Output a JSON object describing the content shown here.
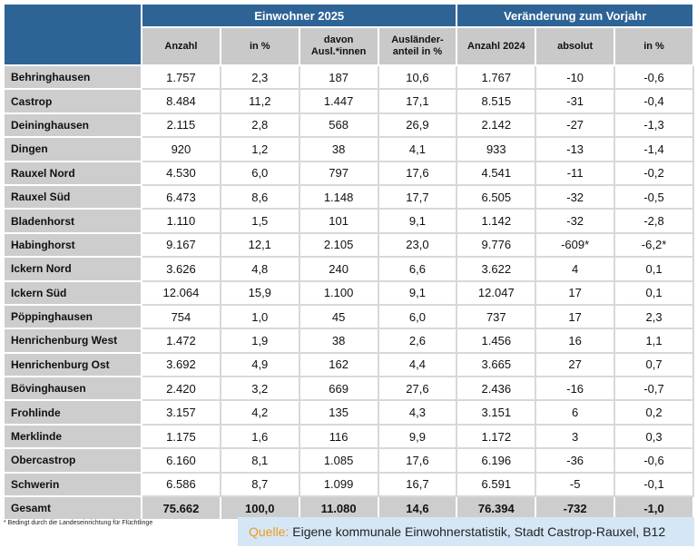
{
  "header": {
    "group1": "Einwohner 2025",
    "group2": "Veränderung zum Vorjahr",
    "columns": [
      "Anzahl",
      "in %",
      "davon Ausl.*innen",
      "Ausländer-anteil in %",
      "Anzahl 2024",
      "absolut",
      "in %"
    ]
  },
  "rows": [
    [
      "Behringhausen",
      "1.757",
      "2,3",
      "187",
      "10,6",
      "1.767",
      "-10",
      "-0,6"
    ],
    [
      "Castrop",
      "8.484",
      "11,2",
      "1.447",
      "17,1",
      "8.515",
      "-31",
      "-0,4"
    ],
    [
      "Deininghausen",
      "2.115",
      "2,8",
      "568",
      "26,9",
      "2.142",
      "-27",
      "-1,3"
    ],
    [
      "Dingen",
      "920",
      "1,2",
      "38",
      "4,1",
      "933",
      "-13",
      "-1,4"
    ],
    [
      "Rauxel Nord",
      "4.530",
      "6,0",
      "797",
      "17,6",
      "4.541",
      "-11",
      "-0,2"
    ],
    [
      "Rauxel Süd",
      "6.473",
      "8,6",
      "1.148",
      "17,7",
      "6.505",
      "-32",
      "-0,5"
    ],
    [
      "Bladenhorst",
      "1.110",
      "1,5",
      "101",
      "9,1",
      "1.142",
      "-32",
      "-2,8"
    ],
    [
      "Habinghorst",
      "9.167",
      "12,1",
      "2.105",
      "23,0",
      "9.776",
      "-609*",
      "-6,2*"
    ],
    [
      "Ickern Nord",
      "3.626",
      "4,8",
      "240",
      "6,6",
      "3.622",
      "4",
      "0,1"
    ],
    [
      "Ickern Süd",
      "12.064",
      "15,9",
      "1.100",
      "9,1",
      "12.047",
      "17",
      "0,1"
    ],
    [
      "Pöppinghausen",
      "754",
      "1,0",
      "45",
      "6,0",
      "737",
      "17",
      "2,3"
    ],
    [
      "Henrichenburg West",
      "1.472",
      "1,9",
      "38",
      "2,6",
      "1.456",
      "16",
      "1,1"
    ],
    [
      "Henrichenburg Ost",
      "3.692",
      "4,9",
      "162",
      "4,4",
      "3.665",
      "27",
      "0,7"
    ],
    [
      "Bövinghausen",
      "2.420",
      "3,2",
      "669",
      "27,6",
      "2.436",
      "-16",
      "-0,7"
    ],
    [
      "Frohlinde",
      "3.157",
      "4,2",
      "135",
      "4,3",
      "3.151",
      "6",
      "0,2"
    ],
    [
      "Merklinde",
      "1.175",
      "1,6",
      "116",
      "9,9",
      "1.172",
      "3",
      "0,3"
    ],
    [
      "Obercastrop",
      "6.160",
      "8,1",
      "1.085",
      "17,6",
      "6.196",
      "-36",
      "-0,6"
    ],
    [
      "Schwerin",
      "6.586",
      "8,7",
      "1.099",
      "16,7",
      "6.591",
      "-5",
      "-0,1"
    ]
  ],
  "total": [
    "Gesamt",
    "75.662",
    "100,0",
    "11.080",
    "14,6",
    "76.394",
    "-732",
    "-1,0"
  ],
  "footnote": "* Bedingt durch die Landeseinrichtung für Flüchtlinge",
  "source": {
    "label": "Quelle:",
    "text": " Eigene kommunale Einwohnerstatistik, Stadt Castrop-Rauxel, B12"
  },
  "colors": {
    "header": "#2e6396",
    "subheader": "#c9c9c9",
    "source_bg": "#d5e7f6",
    "source_label": "#ee9b1c"
  }
}
